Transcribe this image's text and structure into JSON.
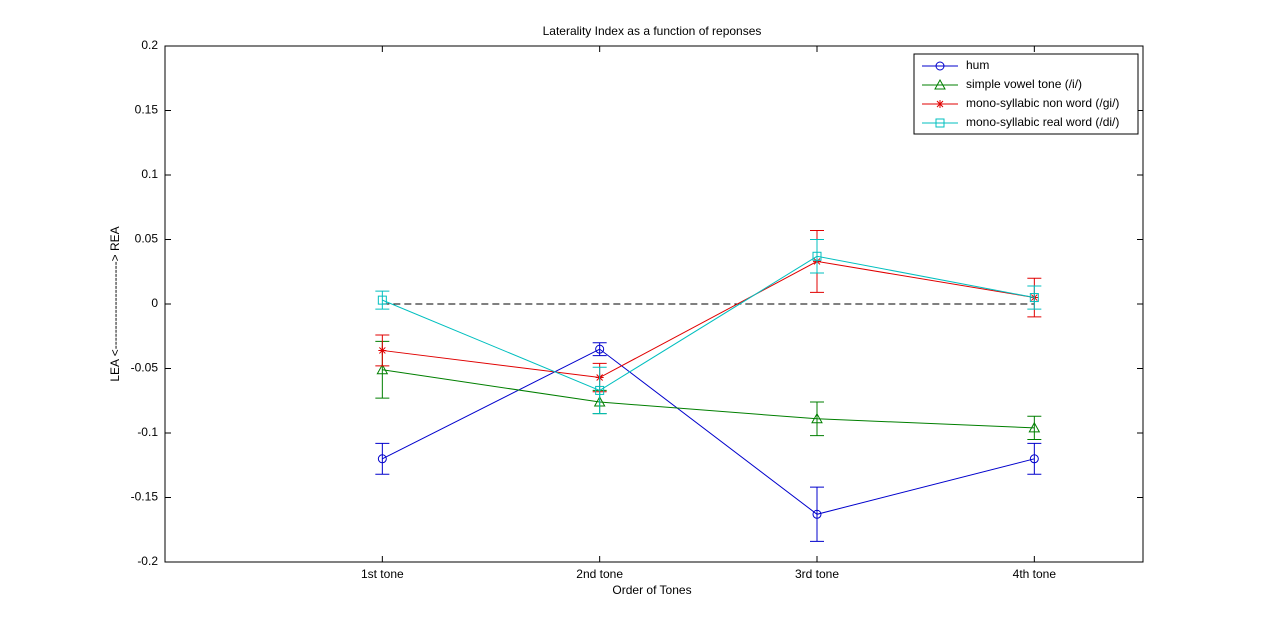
{
  "chart_data": {
    "type": "line",
    "title": "Laterality Index as a function of reponses",
    "x_label": "Order of Tones",
    "y_label": "LEA <----------------------> REA",
    "x": [
      1,
      2,
      3,
      4
    ],
    "xlim": [
      0,
      4.5
    ],
    "xticks": [
      {
        "value": 1,
        "label": "1st tone"
      },
      {
        "value": 2,
        "label": "2nd tone"
      },
      {
        "value": 3,
        "label": "3rd tone"
      },
      {
        "value": 4,
        "label": "4th tone"
      }
    ],
    "ylim": [
      -0.2,
      0.2
    ],
    "yticks": [
      -0.2,
      -0.15,
      -0.1,
      -0.05,
      0,
      0.05,
      0.1,
      0.15,
      0.2
    ],
    "hline": 0,
    "legend": "top-right",
    "series": [
      {
        "name": "hum",
        "color": "#0000cc",
        "marker": "circle",
        "values": [
          -0.12,
          -0.035,
          -0.163,
          -0.12
        ],
        "errors": [
          0.012,
          0.005,
          0.021,
          0.012
        ]
      },
      {
        "name": "simple vowel tone (/i/)",
        "color": "#007f00",
        "marker": "triangle",
        "values": [
          -0.051,
          -0.076,
          -0.089,
          -0.096
        ],
        "errors": [
          0.022,
          0.009,
          0.013,
          0.009
        ]
      },
      {
        "name": "mono-syllabic non word (/gi/)",
        "color": "#e00000",
        "marker": "star",
        "values": [
          -0.036,
          -0.057,
          0.033,
          0.005
        ],
        "errors": [
          0.012,
          0.011,
          0.024,
          0.015
        ]
      },
      {
        "name": "mono-syllabic real word (/di/)",
        "color": "#00bfbf",
        "marker": "square",
        "values": [
          0.003,
          -0.067,
          0.037,
          0.005
        ],
        "errors": [
          0.007,
          0.018,
          0.013,
          0.009
        ]
      }
    ]
  }
}
